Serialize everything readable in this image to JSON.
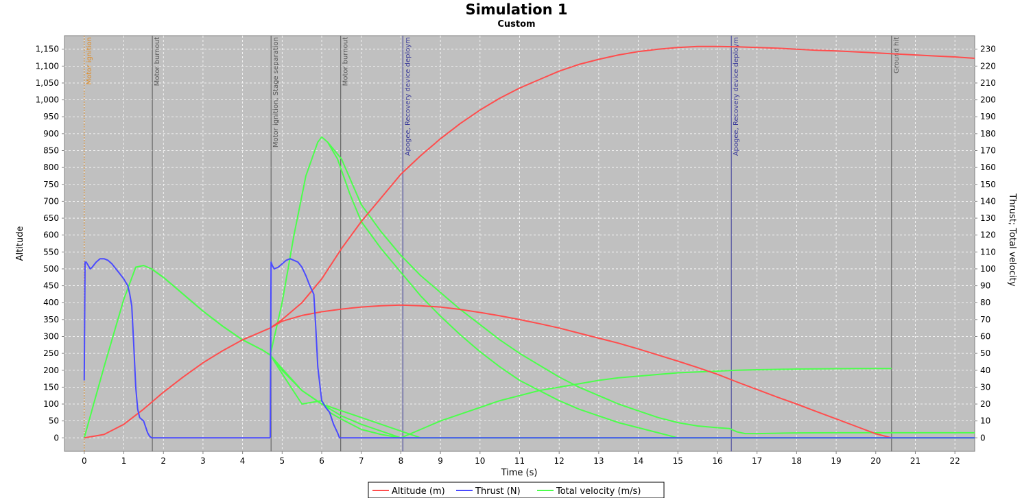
{
  "chart_data": {
    "type": "line",
    "title": "Simulation 1",
    "subtitle": "Custom",
    "xlabel": "Time (s)",
    "ylabel_left": "Altitude",
    "ylabel_right": "Thrust; Total velocity",
    "xlim": [
      -0.5,
      22.5
    ],
    "ylim_left": [
      -40,
      1190
    ],
    "ylim_right": [
      -8,
      238
    ],
    "x_ticks": [
      0,
      1,
      2,
      3,
      4,
      5,
      6,
      7,
      8,
      9,
      10,
      11,
      12,
      13,
      14,
      15,
      16,
      17,
      18,
      19,
      20,
      21,
      22
    ],
    "y_left_ticks": [
      0,
      50,
      100,
      150,
      200,
      250,
      300,
      350,
      400,
      450,
      500,
      550,
      600,
      650,
      700,
      750,
      800,
      850,
      900,
      950,
      1000,
      1050,
      1100,
      1150
    ],
    "y_left_tick_labels": [
      "0",
      "50",
      "100",
      "150",
      "200",
      "250",
      "300",
      "350",
      "400",
      "450",
      "500",
      "550",
      "600",
      "650",
      "700",
      "750",
      "800",
      "850",
      "900",
      "950",
      "1,000",
      "1,050",
      "1,100",
      "1,150"
    ],
    "y_right_ticks": [
      0,
      10,
      20,
      30,
      40,
      50,
      60,
      70,
      80,
      90,
      100,
      110,
      120,
      130,
      140,
      150,
      160,
      170,
      180,
      190,
      200,
      210,
      220,
      230
    ],
    "grid": true,
    "background": "#c0c0c0",
    "legend_position": "bottom",
    "series": [
      {
        "name": "Altitude (m)",
        "axis": "left",
        "color": "#ff4d4d",
        "x": [
          0,
          0.5,
          1,
          1.5,
          2,
          2.5,
          3,
          3.5,
          4,
          4.5,
          4.7
        ],
        "y": [
          0,
          10,
          40,
          85,
          135,
          180,
          222,
          258,
          290,
          315,
          325
        ]
      },
      {
        "name": "Altitude (m)",
        "axis": "left",
        "color": "#ff4d4d",
        "x": [
          4.7,
          5,
          5.5,
          6,
          6.5,
          7,
          7.5,
          8,
          8.5,
          9,
          9.5,
          10,
          10.5,
          11,
          11.5,
          12,
          12.5,
          13,
          13.5,
          14,
          14.5,
          15,
          15.5,
          16,
          16.5,
          17,
          17.5,
          18,
          18.5,
          19,
          19.5,
          20,
          20.5,
          21,
          21.5,
          22,
          22.5
        ],
        "y": [
          325,
          350,
          400,
          470,
          560,
          640,
          710,
          780,
          835,
          885,
          930,
          970,
          1005,
          1035,
          1060,
          1085,
          1105,
          1120,
          1133,
          1143,
          1150,
          1155,
          1158,
          1158,
          1157,
          1155,
          1153,
          1150,
          1147,
          1145,
          1142,
          1139,
          1136,
          1133,
          1130,
          1127,
          1123
        ]
      },
      {
        "name": "Altitude (m)",
        "axis": "left",
        "color": "#ff4d4d",
        "x": [
          4.7,
          5,
          5.5,
          6,
          6.5,
          7,
          7.5,
          8,
          8.5,
          9,
          9.5,
          10,
          10.5,
          11,
          11.5,
          12,
          12.5,
          13,
          13.5,
          14,
          14.5,
          15,
          15.5,
          16,
          16.5,
          17,
          17.5,
          18,
          18.5,
          19,
          19.5,
          20,
          20.4
        ],
        "y": [
          325,
          345,
          362,
          373,
          381,
          387,
          391,
          393,
          391,
          387,
          380,
          371,
          361,
          350,
          338,
          325,
          310,
          295,
          280,
          263,
          245,
          227,
          208,
          188,
          165,
          143,
          121,
          100,
          78,
          56,
          34,
          12,
          0
        ]
      },
      {
        "name": "Thrust (N)",
        "axis": "right",
        "color": "#4a4aff",
        "x": [
          0,
          0.02,
          0.05,
          0.1,
          0.15,
          0.2,
          0.3,
          0.4,
          0.5,
          0.6,
          0.7,
          0.8,
          0.9,
          1,
          1.1,
          1.15,
          1.2,
          1.25,
          1.3,
          1.35,
          1.4,
          1.5,
          1.6,
          1.65,
          1.7,
          2,
          3,
          4,
          4.7
        ],
        "y": [
          34,
          104,
          104,
          102,
          100,
          101,
          104,
          106,
          106,
          105,
          103,
          100,
          97,
          94,
          90,
          85,
          78,
          55,
          30,
          17,
          12,
          10,
          3,
          1,
          0,
          0,
          0,
          0,
          0
        ]
      },
      {
        "name": "Thrust (N)",
        "axis": "right",
        "color": "#4a4aff",
        "x": [
          4.7,
          4.72,
          4.75,
          4.8,
          4.9,
          5,
          5.1,
          5.2,
          5.3,
          5.4,
          5.5,
          5.6,
          5.7,
          5.8,
          5.85,
          5.9,
          6,
          6.1,
          6.2,
          6.3,
          6.4,
          6.45,
          6.5,
          7,
          8,
          10,
          12,
          14,
          16,
          18,
          20,
          22,
          22.5
        ],
        "y": [
          0,
          104,
          102,
          100,
          101,
          103,
          105,
          106,
          105,
          104,
          101,
          96,
          90,
          85,
          65,
          42,
          22,
          18,
          15,
          8,
          3,
          0,
          0,
          0,
          0,
          0,
          0,
          0,
          0,
          0,
          0,
          0,
          0
        ]
      },
      {
        "name": "Total velocity (m/s)",
        "axis": "right",
        "color": "#4cff4c",
        "x": [
          0,
          0.5,
          1,
          1.3,
          1.5,
          1.7,
          2,
          2.5,
          3,
          3.5,
          4,
          4.5,
          4.7,
          5,
          5.5,
          6,
          6.2,
          6.5,
          7,
          7.5,
          8,
          8.5,
          9,
          9.5,
          10,
          10.5,
          11,
          11.5,
          12,
          12.5,
          13,
          13.5,
          14,
          14.5,
          15,
          15.5,
          16,
          16.3,
          16.5,
          16.7,
          17,
          18,
          19,
          20,
          21,
          22,
          22.5
        ],
        "y": [
          0,
          42,
          82,
          101,
          102,
          100,
          95,
          85,
          75,
          66,
          58,
          52,
          49,
          38,
          20,
          22,
          15,
          11,
          5,
          2,
          0,
          0,
          0,
          0,
          0,
          0,
          0,
          0,
          0,
          0,
          0,
          0,
          0,
          0,
          0,
          0,
          0,
          0,
          0,
          0,
          0,
          0,
          0,
          0,
          0,
          0,
          0
        ]
      },
      {
        "name": "Total velocity (m/s)",
        "axis": "right",
        "color": "#4cff4c",
        "x": [
          4.7,
          5,
          5.3,
          5.6,
          5.9,
          6,
          6.15,
          6.4,
          6.7,
          7,
          7.5,
          8,
          8.5,
          9,
          9.5,
          10,
          10.5,
          11,
          11.5,
          12,
          12.5,
          13,
          13.5,
          14,
          14.5,
          15,
          15.5,
          16,
          16.3,
          16.5,
          16.7,
          17,
          18,
          19,
          20,
          21,
          22,
          22.5
        ],
        "y": [
          49,
          80,
          120,
          155,
          175,
          178,
          175,
          165,
          145,
          128,
          112,
          98,
          84,
          72,
          61,
          51,
          42,
          34,
          28,
          22,
          17,
          13,
          9,
          6,
          3,
          0,
          0,
          0,
          0,
          0,
          0,
          0,
          0,
          0,
          0,
          0,
          0,
          0
        ]
      },
      {
        "name": "Total velocity (m/s)",
        "axis": "right",
        "color": "#4cff4c",
        "x": [
          4.7,
          5,
          5.5,
          6,
          6.5,
          7,
          7.5,
          8
        ],
        "y": [
          49,
          40,
          28,
          20,
          13,
          8,
          4,
          0
        ]
      },
      {
        "name": "Total velocity (m/s)",
        "axis": "right",
        "color": "#4cff4c",
        "x": [
          8,
          8.5,
          9,
          9.5,
          10,
          10.5,
          11,
          11.5,
          12,
          12.5,
          13,
          13.5,
          14,
          14.5,
          15,
          15.5,
          16,
          16.5,
          17,
          17.5,
          18,
          18.5,
          19,
          19.5,
          20,
          20.4
        ],
        "y": [
          0,
          5,
          10,
          14,
          18,
          22,
          25,
          28,
          30,
          32,
          34,
          35.5,
          36.5,
          37.5,
          38.5,
          39,
          39.5,
          40,
          40.3,
          40.5,
          40.7,
          40.8,
          40.9,
          41,
          41,
          41
        ]
      },
      {
        "name": "Total velocity (m/s)",
        "axis": "right",
        "color": "#4cff4c",
        "x": [
          1.7,
          2,
          2.5,
          3,
          3.5,
          4,
          4.5,
          4.7,
          5,
          5.5,
          6,
          6.5,
          7,
          7.5,
          8,
          8.5,
          9,
          9.5,
          10,
          10.5,
          11,
          11.5,
          12,
          12.5,
          13,
          13.5,
          14,
          14.5,
          15,
          15.5,
          16,
          16.3,
          16.5,
          16.8,
          17,
          18,
          19,
          20,
          21,
          22,
          22.5
        ],
        "y": [
          100,
          95,
          85,
          75,
          66,
          58,
          52,
          49,
          41,
          28,
          20,
          16,
          12,
          8,
          4,
          0,
          0,
          0,
          0,
          0,
          0,
          0,
          0,
          0,
          0,
          0,
          0,
          0,
          0,
          0,
          0,
          0,
          0,
          0,
          0,
          0,
          0,
          0,
          0,
          0,
          0
        ]
      },
      {
        "name": "Total velocity (m/s)",
        "axis": "right",
        "color": "#4cff4c",
        "x": [
          6.15,
          6.5,
          7,
          7.5,
          8,
          8.5,
          9,
          9.5,
          10,
          10.5,
          11,
          11.5,
          12,
          12.5,
          13,
          13.5,
          14,
          14.5,
          15,
          15.5,
          16,
          16.3,
          16.5,
          16.7,
          17,
          17.5,
          18,
          19,
          20,
          21,
          22,
          22.5
        ],
        "y": [
          175,
          165,
          138,
          122,
          108,
          96,
          86,
          76,
          67,
          58,
          50,
          43,
          36,
          30,
          25,
          20,
          16,
          12,
          9,
          7,
          6,
          5.5,
          3.5,
          2.5,
          2.5,
          2.7,
          2.9,
          3,
          3,
          3,
          3,
          3
        ]
      }
    ],
    "events": [
      {
        "x": 0,
        "label": "Motor ignition",
        "color": "#e08a20",
        "dashed": true
      },
      {
        "x": 1.72,
        "label": "Motor burnout",
        "color": "#555555"
      },
      {
        "x": 4.72,
        "label": "Motor ignition, Stage separation",
        "color": "#555555"
      },
      {
        "x": 6.48,
        "label": "Motor burnout",
        "color": "#555555"
      },
      {
        "x": 8.05,
        "label": "Apogee, Recovery device deploym",
        "color": "#3a3a9a"
      },
      {
        "x": 16.35,
        "label": "Apogee, Recovery device deploym",
        "color": "#3a3a9a"
      },
      {
        "x": 20.4,
        "label": "Ground hit",
        "color": "#555555"
      }
    ],
    "legend": [
      {
        "label": "Altitude (m)",
        "color": "#ff4d4d"
      },
      {
        "label": "Thrust (N)",
        "color": "#4a4aff"
      },
      {
        "label": "Total velocity (m/s)",
        "color": "#4cff4c"
      }
    ]
  }
}
